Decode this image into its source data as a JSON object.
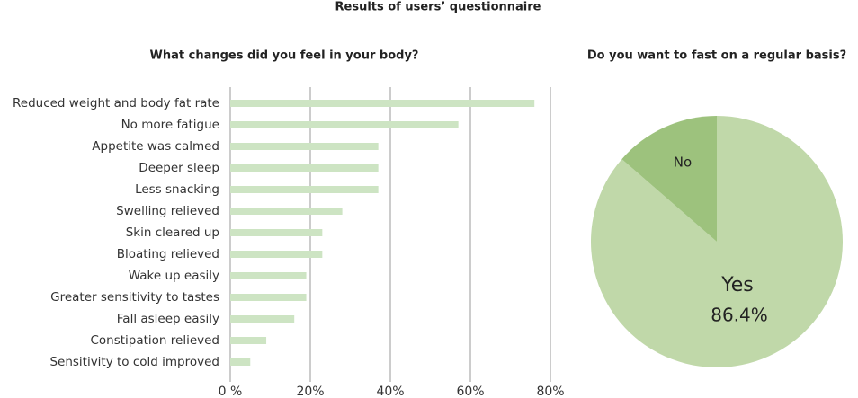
{
  "title": "Results of users’ questionnaire",
  "chart_data": [
    {
      "type": "hbar",
      "title": "What changes did you feel in your body?",
      "categories": [
        "Reduced weight and body fat rate",
        "No more fatigue",
        "Appetite was calmed",
        "Deeper sleep",
        "Less snacking",
        "Swelling relieved",
        "Skin cleared up",
        "Bloating relieved",
        "Wake up easily",
        "Greater sensitivity to tastes",
        "Fall asleep easily",
        "Constipation relieved",
        "Sensitivity to cold improved"
      ],
      "values": [
        76,
        57,
        37,
        37,
        37,
        28,
        23,
        23,
        19,
        19,
        16,
        9,
        5
      ],
      "color": "#cde4c3",
      "xlim": [
        0,
        80
      ],
      "xticks": [
        {
          "value": 0,
          "label": "0 %"
        },
        {
          "value": 20,
          "label": "20%"
        },
        {
          "value": 40,
          "label": "40%"
        },
        {
          "value": 60,
          "label": "60%"
        },
        {
          "value": 80,
          "label": "80%"
        }
      ],
      "grid": true
    },
    {
      "type": "pie",
      "title": "Do you want to fast on a regular basis?",
      "categories": [
        "Yes",
        "No"
      ],
      "values": [
        86.4,
        13.6
      ],
      "value_labels": [
        "86.4%",
        null
      ],
      "colors": [
        "#c0d8a9",
        "#9dc27d"
      ]
    }
  ]
}
